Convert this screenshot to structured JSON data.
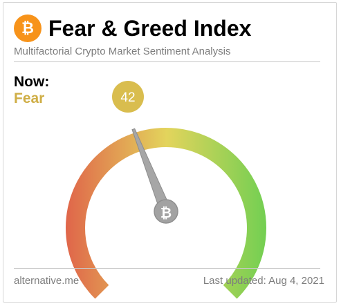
{
  "header": {
    "logo_icon": "bitcoin-icon",
    "title": "Fear & Greed Index",
    "subtitle": "Multifactorial Crypto Market Sentiment Analysis"
  },
  "status": {
    "now_label": "Now:",
    "classification": "Fear",
    "classification_color": "#cfae46"
  },
  "gauge": {
    "value": 42,
    "min": 0,
    "max": 100,
    "badge_color": "#d9bd4e",
    "colors": [
      "#e0664a",
      "#e3d45c",
      "#72cf52"
    ]
  },
  "footer": {
    "source": "alternative.me",
    "last_updated": "Last updated: Aug 4, 2021"
  }
}
